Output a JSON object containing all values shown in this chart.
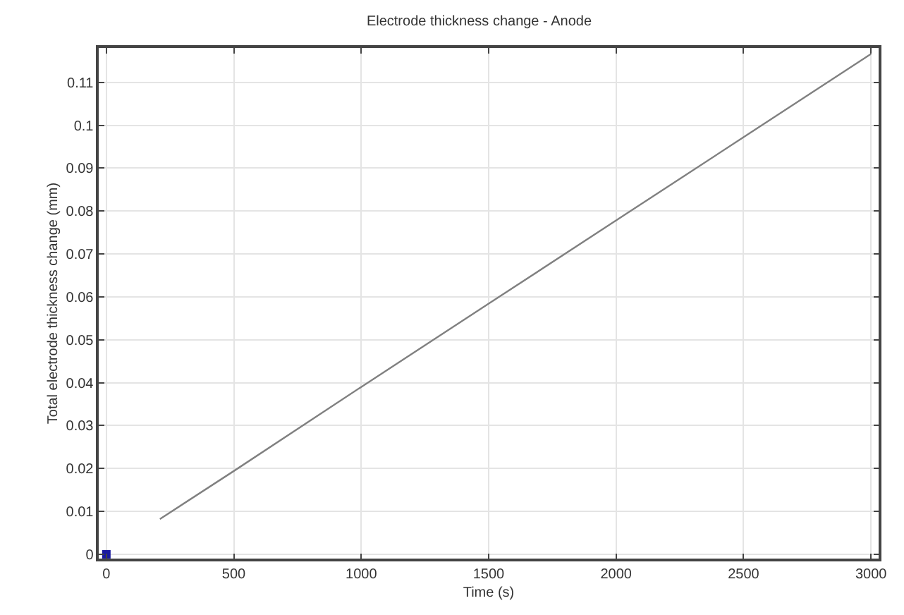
{
  "chart_data": {
    "type": "line",
    "title": "Electrode thickness change - Anode",
    "xlabel": "Time (s)",
    "ylabel": "Total electrode thickness change (mm)",
    "xlim": [
      -30,
      3030
    ],
    "xticks": [
      0,
      500,
      1000,
      1500,
      2000,
      2500,
      3000
    ],
    "ylim": [
      -0.001,
      0.118
    ],
    "yticks": [
      0,
      0.01,
      0.02,
      0.03,
      0.04,
      0.05,
      0.06,
      0.07,
      0.08,
      0.09,
      0.1,
      0.11
    ],
    "grid": true,
    "series": [
      {
        "color": "#808080",
        "x": [
          210,
          500,
          1000,
          1500,
          2000,
          2500,
          3000
        ],
        "values": [
          0.0082,
          0.0194,
          0.039,
          0.0584,
          0.0778,
          0.0972,
          0.1166
        ]
      },
      {
        "type": "scatter",
        "color": "#1a1aa0",
        "marker": "square",
        "x": [
          0
        ],
        "values": [
          0
        ]
      }
    ]
  }
}
